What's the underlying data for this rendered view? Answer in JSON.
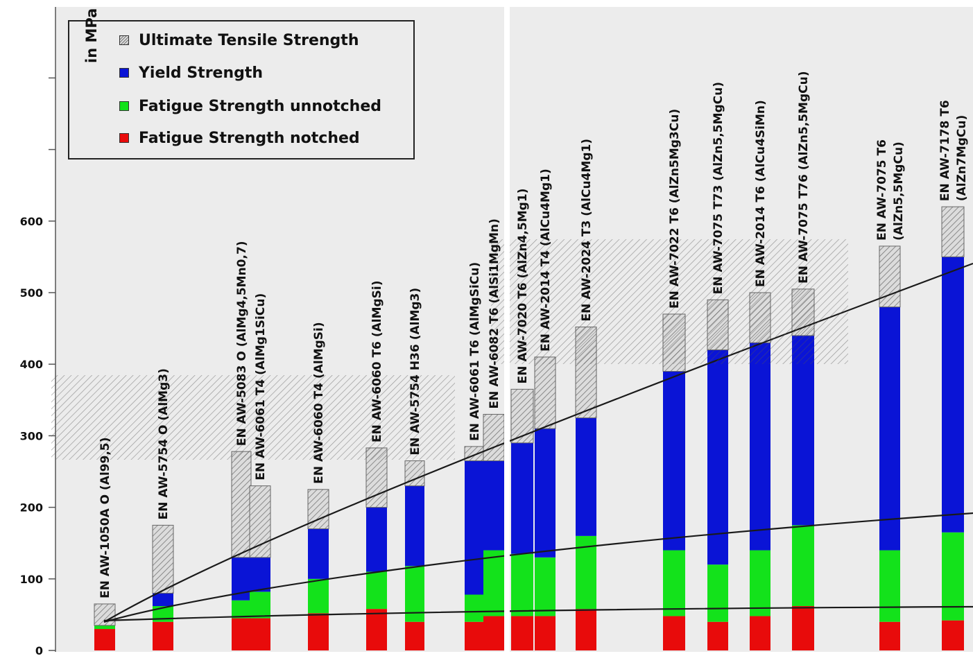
{
  "chart_data": {
    "type": "bar",
    "ylabel": "in MPa",
    "ylim": [
      0,
      900
    ],
    "yticks": [
      "0",
      "100",
      "200",
      "300",
      "400",
      "500",
      "600"
    ],
    "grid": false,
    "legend_position": "top-left",
    "colors": {
      "uts": "#c8c8c8",
      "yield": "#0a14d6",
      "fatigue_unnotched": "#13e21b",
      "fatigue_notched": "#e80b0b",
      "plot_bg": "#ececec"
    },
    "series": [
      {
        "key": "uts",
        "name": "Ultimate Tensile Strength"
      },
      {
        "key": "yield",
        "name": "Yield Strength"
      },
      {
        "key": "fatigue_unnotched",
        "name": "Fatigue Strength unnotched"
      },
      {
        "key": "fatigue_notched",
        "name": "Fatigue Strength notched"
      }
    ],
    "bars": [
      {
        "lines": [
          "EN AW-1050A O (Al99,5)"
        ],
        "uts": 65,
        "yield": 35,
        "fatigue_unnotched": 35,
        "fatigue_notched": 30
      },
      {
        "lines": [
          "EN AW-5754 O (AlMg3)"
        ],
        "uts": 175,
        "yield": 80,
        "fatigue_unnotched": 62,
        "fatigue_notched": 40
      },
      {
        "lines": [
          "EN AW-5083 O (AlMg4,5Mn0,7)"
        ],
        "uts": 278,
        "yield": 130,
        "fatigue_unnotched": 70,
        "fatigue_notched": 45
      },
      {
        "lines": [
          "EN AW-6061 T4 (AlMg1SiCu)"
        ],
        "uts": 230,
        "yield": 130,
        "fatigue_unnotched": 82,
        "fatigue_notched": 45
      },
      {
        "lines": [
          "EN AW-6060 T4 (AlMgSi)"
        ],
        "uts": 225,
        "yield": 170,
        "fatigue_unnotched": 100,
        "fatigue_notched": 52
      },
      {
        "lines": [
          "EN AW-6060 T6 (AlMgSi)"
        ],
        "uts": 283,
        "yield": 200,
        "fatigue_unnotched": 110,
        "fatigue_notched": 58
      },
      {
        "lines": [
          "EN AW-5754 H36 (AlMg3)"
        ],
        "uts": 265,
        "yield": 230,
        "fatigue_unnotched": 118,
        "fatigue_notched": 40
      },
      {
        "lines": [
          "EN AW-6061 T6 (AlMgSiCu)"
        ],
        "uts": 285,
        "yield": 265,
        "fatigue_unnotched": 78,
        "fatigue_notched": 40
      },
      {
        "lines": [
          "EN AW-6082 T6 (AlSi1MgMn)"
        ],
        "uts": 330,
        "yield": 265,
        "fatigue_unnotched": 140,
        "fatigue_notched": 48
      },
      {
        "lines": [
          "EN AW-7020 T6 (AlZn4,5Mg1)"
        ],
        "uts": 365,
        "yield": 290,
        "fatigue_unnotched": 135,
        "fatigue_notched": 48
      },
      {
        "lines": [
          "EN AW-2014 T4 (AlCu4Mg1)"
        ],
        "uts": 410,
        "yield": 310,
        "fatigue_unnotched": 130,
        "fatigue_notched": 48
      },
      {
        "lines": [
          "EN AW-2024 T3 (AlCu4Mg1)"
        ],
        "uts": 452,
        "yield": 325,
        "fatigue_unnotched": 160,
        "fatigue_notched": 58
      },
      {
        "lines": [
          "EN AW-7022 T6 (AlZn5Mg3Cu)"
        ],
        "uts": 470,
        "yield": 390,
        "fatigue_unnotched": 140,
        "fatigue_notched": 48
      },
      {
        "lines": [
          "EN AW-7075 T73 (AlZn5,5MgCu)"
        ],
        "uts": 490,
        "yield": 420,
        "fatigue_unnotched": 120,
        "fatigue_notched": 40
      },
      {
        "lines": [
          "EN AW-2014 T6 (AlCu4SiMn)"
        ],
        "uts": 500,
        "yield": 430,
        "fatigue_unnotched": 140,
        "fatigue_notched": 48
      },
      {
        "lines": [
          "EN AW-7075 T76 (AlZn5,5MgCu)"
        ],
        "uts": 505,
        "yield": 440,
        "fatigue_unnotched": 175,
        "fatigue_notched": 62
      },
      {
        "lines": [
          "EN AW-7075 T6",
          "(AlZn5,5MgCu)"
        ],
        "uts": 565,
        "yield": 480,
        "fatigue_unnotched": 140,
        "fatigue_notched": 40
      },
      {
        "lines": [
          "EN AW-7178 T6",
          "(AlZn7MgCu)"
        ],
        "uts": 620,
        "yield": 550,
        "fatigue_unnotched": 165,
        "fatigue_notched": 42
      }
    ]
  }
}
